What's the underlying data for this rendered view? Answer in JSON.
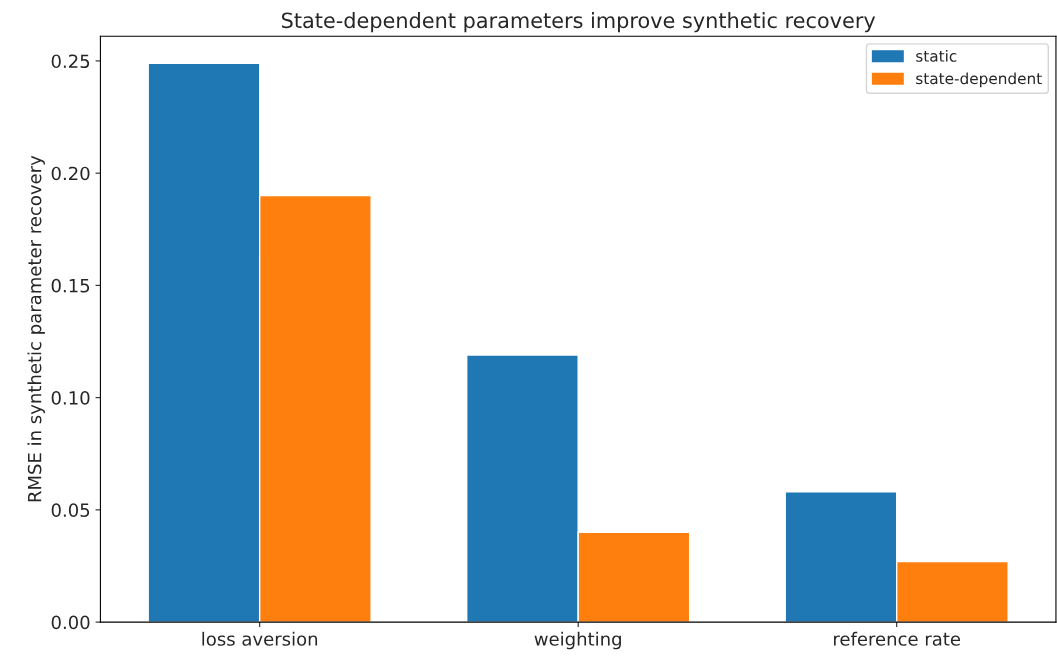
{
  "chart_data": {
    "type": "bar",
    "title": "State-dependent parameters improve synthetic recovery",
    "ylabel": "RMSE in synthetic parameter recovery",
    "categories": [
      "loss aversion",
      "weighting",
      "reference rate"
    ],
    "series": [
      {
        "name": "static",
        "color": "#1f77b4",
        "values": [
          0.249,
          0.119,
          0.058
        ]
      },
      {
        "name": "state-dependent",
        "color": "#ff7f0e",
        "values": [
          0.19,
          0.04,
          0.027
        ]
      }
    ],
    "ylim": [
      0,
      0.261
    ],
    "yticks": [
      {
        "value": 0,
        "label": "0.00"
      },
      {
        "value": 0.05,
        "label": "0.05"
      },
      {
        "value": 0.1,
        "label": "0.10"
      },
      {
        "value": 0.15,
        "label": "0.15"
      },
      {
        "value": 0.2,
        "label": "0.20"
      },
      {
        "value": 0.25,
        "label": "0.25"
      }
    ],
    "legend": "top right",
    "grid": false
  }
}
